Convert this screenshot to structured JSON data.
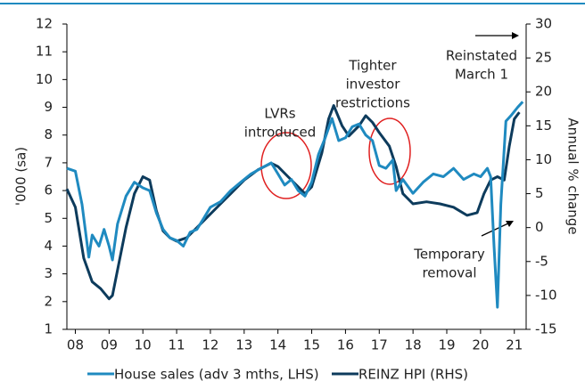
{
  "chart_data": {
    "type": "line",
    "ylabel": "'000 (sa)",
    "y2label": "Annual % change",
    "xlim": [
      2007.75,
      2021.35
    ],
    "xticks": [
      {
        "value": 2008,
        "label": "08"
      },
      {
        "value": 2009,
        "label": "09"
      },
      {
        "value": 2010,
        "label": "10"
      },
      {
        "value": 2011,
        "label": "11"
      },
      {
        "value": 2012,
        "label": "12"
      },
      {
        "value": 2013,
        "label": "13"
      },
      {
        "value": 2014,
        "label": "14"
      },
      {
        "value": 2015,
        "label": "15"
      },
      {
        "value": 2016,
        "label": "16"
      },
      {
        "value": 2017,
        "label": "17"
      },
      {
        "value": 2018,
        "label": "18"
      },
      {
        "value": 2019,
        "label": "19"
      },
      {
        "value": 2020,
        "label": "20"
      },
      {
        "value": 2021,
        "label": "21"
      }
    ],
    "ylim": [
      1,
      12
    ],
    "yticks": [
      1,
      2,
      3,
      4,
      5,
      6,
      7,
      8,
      9,
      10,
      11,
      12
    ],
    "y2lim": [
      -15,
      30
    ],
    "y2ticks": [
      -15,
      -10,
      -5,
      0,
      5,
      10,
      15,
      20,
      25,
      30
    ],
    "legend": "bottom",
    "annotations": [
      {
        "lines": [
          "LVRs",
          "introduced"
        ]
      },
      {
        "lines": [
          "Tighter",
          "investor",
          "restrictions"
        ]
      },
      {
        "lines": [
          "Reinstated",
          "March 1"
        ]
      },
      {
        "lines": [
          "Temporary",
          "removal"
        ]
      }
    ],
    "series": [
      {
        "name": "House sales (adv 3 mths, LHS)",
        "color": "#1f8ac0",
        "axis": "y",
        "x": [
          2007.75,
          2008,
          2008.2,
          2008.4,
          2008.5,
          2008.7,
          2008.85,
          2009,
          2009.1,
          2009.25,
          2009.5,
          2009.75,
          2010,
          2010.2,
          2010.4,
          2010.6,
          2010.8,
          2011,
          2011.2,
          2011.4,
          2011.6,
          2011.8,
          2012,
          2012.3,
          2012.6,
          2012.9,
          2013.2,
          2013.5,
          2013.8,
          2014,
          2014.2,
          2014.4,
          2014.6,
          2014.8,
          2015,
          2015.2,
          2015.4,
          2015.6,
          2015.8,
          2016,
          2016.2,
          2016.4,
          2016.6,
          2016.8,
          2017,
          2017.2,
          2017.4,
          2017.5,
          2017.7,
          2018,
          2018.3,
          2018.6,
          2018.9,
          2019.2,
          2019.5,
          2019.8,
          2020,
          2020.2,
          2020.3,
          2020.4,
          2020.5,
          2020.6,
          2020.75,
          2020.9,
          2021.1,
          2021.25
        ],
        "values": [
          6.8,
          6.7,
          5.5,
          3.6,
          4.4,
          4.0,
          4.6,
          4.0,
          3.5,
          4.8,
          5.8,
          6.3,
          6.1,
          6.0,
          5.2,
          4.6,
          4.3,
          4.2,
          4.0,
          4.5,
          4.6,
          5.0,
          5.4,
          5.6,
          6.0,
          6.3,
          6.6,
          6.8,
          7.0,
          6.6,
          6.2,
          6.4,
          6.0,
          5.8,
          6.3,
          7.3,
          7.9,
          8.6,
          7.8,
          7.9,
          8.3,
          8.4,
          8.0,
          7.8,
          6.9,
          6.8,
          7.1,
          6.0,
          6.4,
          5.9,
          6.3,
          6.6,
          6.5,
          6.8,
          6.4,
          6.6,
          6.5,
          6.8,
          6.5,
          4.0,
          1.8,
          5.5,
          8.5,
          8.7,
          9.0,
          9.2
        ]
      },
      {
        "name": "REINZ HPI (RHS)",
        "color": "#0d3b5c",
        "axis": "y2",
        "x": [
          2007.75,
          2008,
          2008.25,
          2008.5,
          2008.75,
          2009,
          2009.1,
          2009.3,
          2009.5,
          2009.75,
          2010,
          2010.2,
          2010.4,
          2010.6,
          2010.8,
          2011,
          2011.3,
          2011.6,
          2012,
          2012.3,
          2012.6,
          2013,
          2013.4,
          2013.8,
          2014,
          2014.3,
          2014.6,
          2014.8,
          2015,
          2015.3,
          2015.5,
          2015.65,
          2015.9,
          2016.1,
          2016.4,
          2016.6,
          2016.8,
          2017,
          2017.3,
          2017.5,
          2017.7,
          2018,
          2018.4,
          2018.8,
          2019.2,
          2019.6,
          2019.9,
          2020.1,
          2020.3,
          2020.5,
          2020.7,
          2020.85,
          2021,
          2021.15
        ],
        "values": [
          5.7,
          3,
          -4.5,
          -8,
          -9,
          -10.5,
          -10,
          -5,
          0,
          5,
          7.5,
          7,
          2.5,
          -0.5,
          -1.5,
          -2,
          -1.5,
          0,
          2,
          3.5,
          5,
          7,
          8.5,
          9.5,
          9,
          7.5,
          6,
          5,
          6,
          11,
          16,
          18,
          15,
          13.5,
          15,
          16.5,
          15.5,
          14,
          12,
          9,
          5,
          3.5,
          3.8,
          3.5,
          3,
          1.8,
          2.2,
          5,
          7,
          7.5,
          7,
          12,
          16,
          17
        ]
      }
    ]
  }
}
